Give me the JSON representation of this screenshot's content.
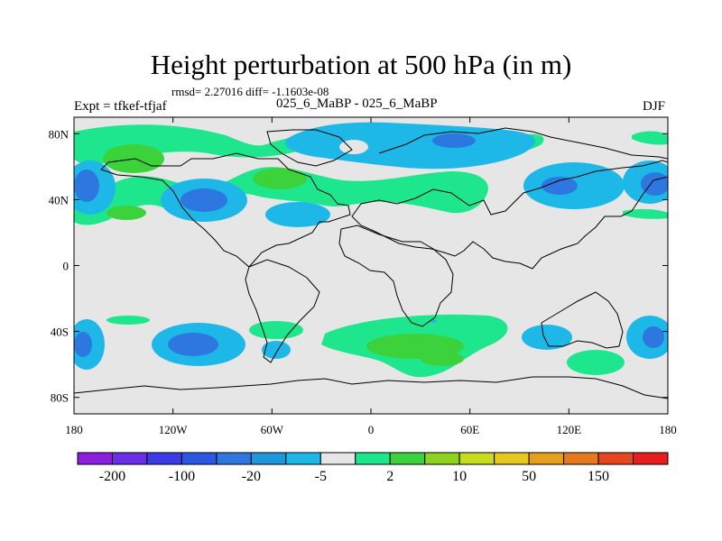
{
  "title": "Height perturbation at 500 hPa (in m)",
  "stats": "rmsd= 2.27016  diff= -1.1603e-08",
  "left_label": "Expt = tfkef-tfjaf",
  "center_label": "025_6_MaBP - 025_6_MaBP",
  "right_label": "DJF",
  "x_ticks": [
    "180",
    "120W",
    "60W",
    "0",
    "60E",
    "120E",
    "180"
  ],
  "y_ticks": [
    "80N",
    "40N",
    "0",
    "40S",
    "80S"
  ],
  "colorbar": {
    "colors": [
      "#8c1ee0",
      "#6a2ee6",
      "#3c3ce6",
      "#2a58e4",
      "#2c78e0",
      "#1e98dc",
      "#1eb8e8",
      "#e6e6e6",
      "#1ee68c",
      "#3cd23c",
      "#8cd21e",
      "#c8dc1e",
      "#e6c81e",
      "#e6a01e",
      "#e6781e",
      "#e6461e",
      "#e61e1e"
    ],
    "labels": [
      "-200",
      "-100",
      "-20",
      "-5",
      "2",
      "10",
      "50",
      "150"
    ]
  }
}
